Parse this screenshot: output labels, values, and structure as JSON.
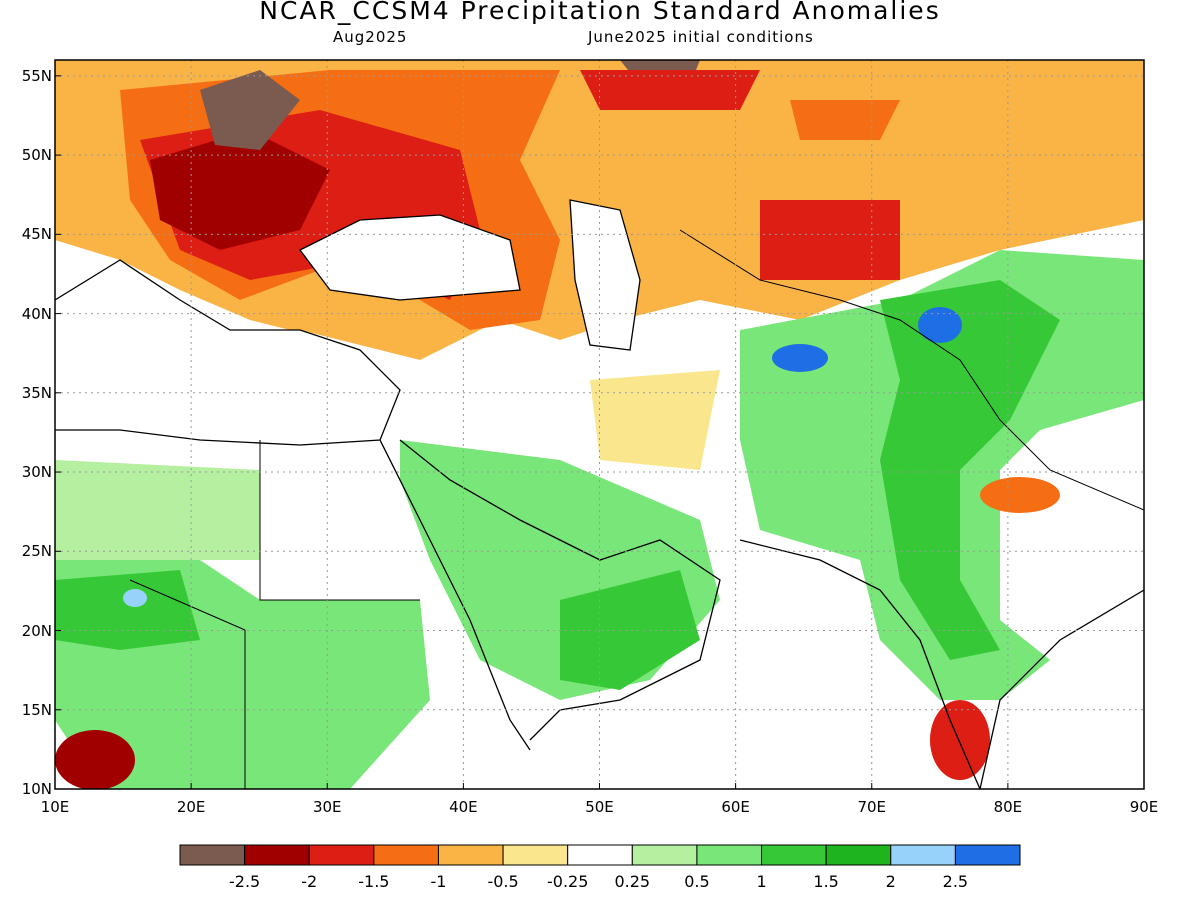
{
  "header": {
    "title": "NCAR_CCSM4 Precipitation Standard Anomalies",
    "valid_month": "Aug2025",
    "init": "June2025 initial conditions"
  },
  "axes": {
    "lat_labels": [
      "55N",
      "50N",
      "45N",
      "40N",
      "35N",
      "30N",
      "25N",
      "20N",
      "15N",
      "10N"
    ],
    "lon_labels": [
      "10E",
      "20E",
      "30E",
      "40E",
      "50E",
      "60E",
      "70E",
      "80E",
      "90E"
    ],
    "lat_range": [
      10,
      56
    ],
    "lon_range": [
      10,
      90
    ]
  },
  "colorbar": {
    "colors": [
      "#7b5b50",
      "#a00000",
      "#dc1e14",
      "#f56e14",
      "#fab446",
      "#fae68c",
      "#ffffff",
      "#b4f0a0",
      "#78e678",
      "#37c837",
      "#1eb41e",
      "#96d2fa",
      "#1e6ee6"
    ],
    "labels": [
      "-2.5",
      "-2",
      "-1.5",
      "-1",
      "-0.5",
      "-0.25",
      "0.25",
      "0.5",
      "1",
      "1.5",
      "2",
      "2.5"
    ]
  }
}
